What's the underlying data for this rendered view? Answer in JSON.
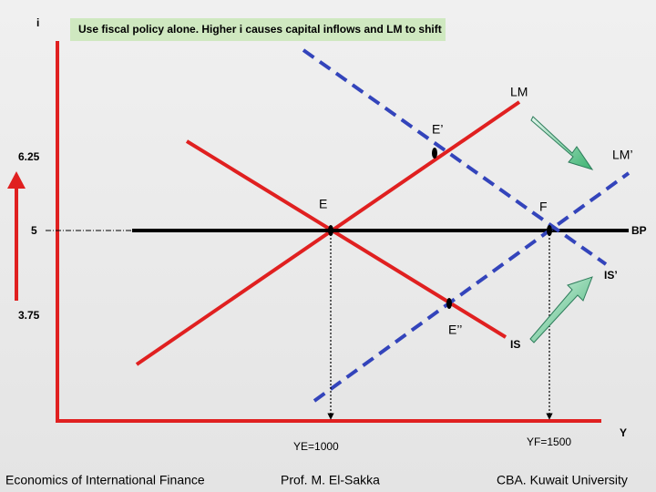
{
  "header": {
    "title": "Use fiscal policy alone. Higher i causes capital inflows and LM to shift"
  },
  "axes": {
    "y_label": "i",
    "x_label": "Y",
    "y_values": [
      "6.25",
      "5",
      "3.75"
    ],
    "x_values": [
      "YE=1000",
      "YF=1500"
    ]
  },
  "curves": {
    "lm": "LM",
    "lm_shifted": "LM’",
    "is": "IS",
    "is_shifted": "IS’",
    "bp": "BP"
  },
  "points": {
    "e": "E",
    "f": "F",
    "e_prime": "E’",
    "e_double_prime": "E’’"
  },
  "footer": {
    "left": "Economics of International Finance",
    "center": "Prof. M. El-Sakka",
    "right": "CBA. Kuwait University"
  }
}
